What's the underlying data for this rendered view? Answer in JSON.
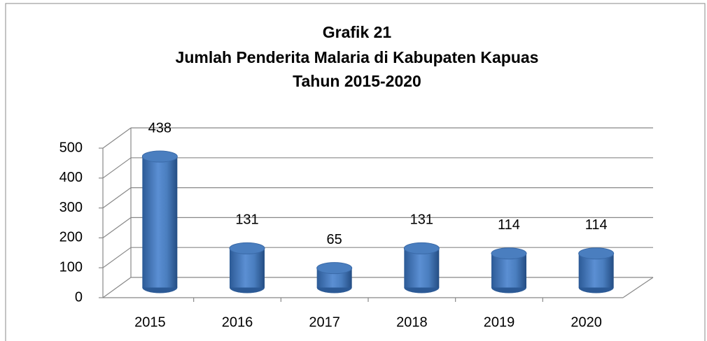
{
  "chart_data": {
    "type": "bar3d",
    "title": [
      "Grafik 21",
      "Jumlah Penderita Malaria di Kabupaten Kapuas",
      "Tahun  2015-2020"
    ],
    "categories": [
      "2015",
      "2016",
      "2017",
      "2018",
      "2019",
      "2020"
    ],
    "values": [
      438,
      131,
      65,
      131,
      114,
      114
    ],
    "color": "#4a7ebf",
    "ylim": [
      0,
      500
    ],
    "yticks": [
      0,
      100,
      200,
      300,
      400,
      500
    ],
    "grid": true
  }
}
